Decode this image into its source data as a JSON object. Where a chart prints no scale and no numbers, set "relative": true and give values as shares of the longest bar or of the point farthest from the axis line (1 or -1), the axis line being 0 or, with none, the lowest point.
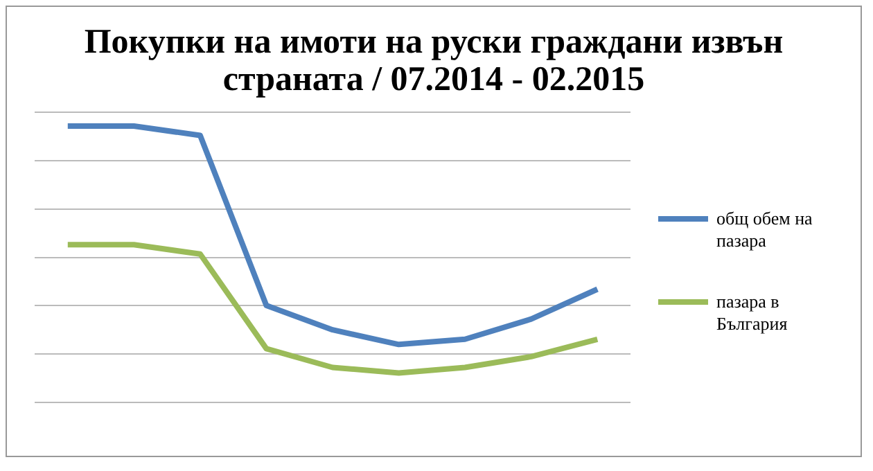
{
  "chart_data": {
    "type": "line",
    "title": "Покупки на имоти на руски граждани извън страната / 07.2014 - 02.2015",
    "categories": [
      null,
      null,
      null,
      null,
      null,
      null,
      null,
      null,
      null
    ],
    "relative": true,
    "grid": "y",
    "legend": "right",
    "marker": "none",
    "series": [
      {
        "name": "общ обем на пазара",
        "color": "#4f81bd",
        "values": [
          1,
          1,
          0.966,
          0.351,
          0.263,
          0.21,
          0.229,
          0.302,
          0.41
        ]
      },
      {
        "name": "пазара в България",
        "color": "#9bbb59",
        "values": [
          0.571,
          0.571,
          0.537,
          0.195,
          0.127,
          0.107,
          0.127,
          0.166,
          0.229
        ]
      }
    ]
  }
}
